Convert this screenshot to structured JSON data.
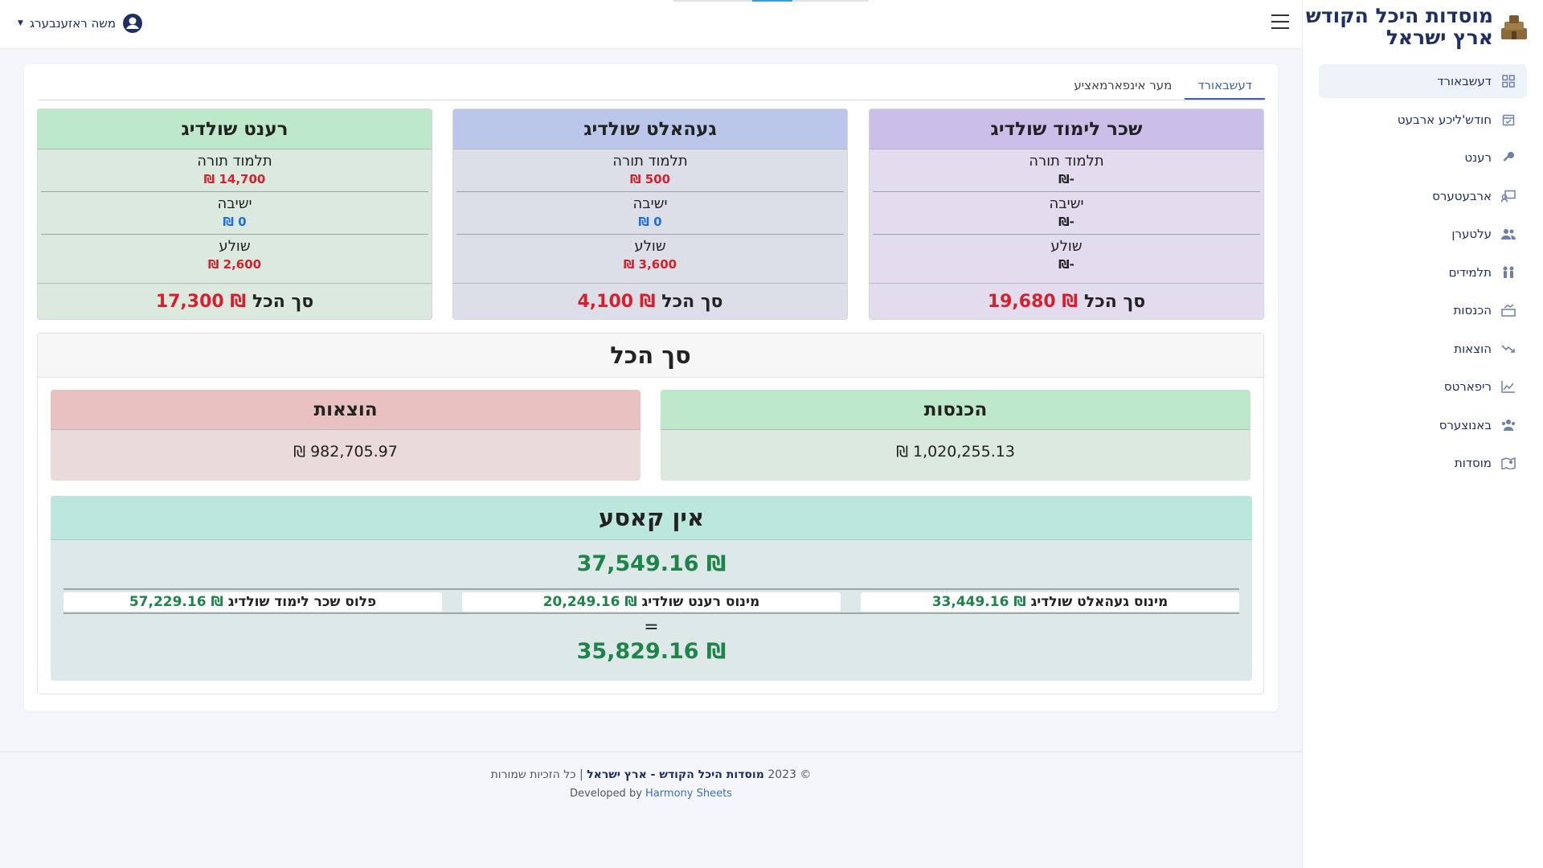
{
  "brand": {
    "line1": "מוסדות היכל הקודש",
    "line2": "ארץ ישראל"
  },
  "user": {
    "name": "משה ראזענבערג"
  },
  "sidebar": {
    "items": [
      {
        "label": "דעשבאורד",
        "icon": "dashboard-icon"
      },
      {
        "label": "חודש'ליכע ארבעט",
        "icon": "calendar-check-icon"
      },
      {
        "label": "רענט",
        "icon": "key-icon"
      },
      {
        "label": "ארבעטערס",
        "icon": "workers-icon"
      },
      {
        "label": "עלטערן",
        "icon": "users-icon"
      },
      {
        "label": "תלמידים",
        "icon": "children-icon"
      },
      {
        "label": "הכנסות",
        "icon": "income-icon"
      },
      {
        "label": "הוצאות",
        "icon": "trend-down-icon"
      },
      {
        "label": "ריפארטס",
        "icon": "chart-line-icon"
      },
      {
        "label": "באנוצערס",
        "icon": "user-group-icon"
      },
      {
        "label": "מוסדות",
        "icon": "map-icon"
      }
    ]
  },
  "tabs": [
    {
      "label": "דעשבאורד"
    },
    {
      "label": "מער אינפארמאציע"
    }
  ],
  "cards": [
    {
      "title": "שכר לימוד שולדיג",
      "head_color": "#cbbfea",
      "body_color": "#e2dcee",
      "rows": [
        {
          "label": "תלמוד תורה",
          "value": "₪-"
        },
        {
          "label": "ישיבה",
          "value": "₪-"
        },
        {
          "label": "שולע",
          "value": "₪-"
        }
      ],
      "total_label": "סך הכל",
      "total_value": "₪ 19,680"
    },
    {
      "title": "געהאלט שולדיג",
      "head_color": "#bac6ea",
      "body_color": "#dcdfe8",
      "rows": [
        {
          "label": "תלמוד תורה",
          "value": "₪ 500"
        },
        {
          "label": "ישיבה",
          "value": "₪ 0"
        },
        {
          "label": "שולע",
          "value": "₪ 3,600"
        }
      ],
      "total_label": "סך הכל",
      "total_value": "₪ 4,100"
    },
    {
      "title": "רענט שולדיג",
      "head_color": "#bde8c9",
      "body_color": "#dce9df",
      "rows": [
        {
          "label": "תלמוד תורה",
          "value": "₪ 14,700"
        },
        {
          "label": "ישיבה",
          "value": "₪ 0"
        },
        {
          "label": "שולע",
          "value": "₪ 2,600"
        }
      ],
      "total_label": "סך הכל",
      "total_value": "₪ 17,300"
    }
  ],
  "totals": {
    "title": "סך הכל",
    "income": {
      "label": "הכנסות",
      "value": "₪ 1,020,255.13"
    },
    "expenses": {
      "label": "הוצאות",
      "value": "₪ 982,705.97"
    }
  },
  "cash": {
    "title": "אין קאסע",
    "amount": "₪ 37,549.16",
    "minus_salary_label": "מינוס געהאלט שולדיג",
    "minus_salary_value": "₪ 33,449.16",
    "minus_rent_label": "מינוס רענט שולדיג",
    "minus_rent_value": "₪ 20,249.16",
    "plus_tuition_label": "פלוס שכר לימוד שולדיג",
    "plus_tuition_value": "₪ 57,229.16",
    "equals": "=",
    "result": "₪ 35,829.16"
  },
  "footer": {
    "copyright": "© 2023",
    "org": "מוסדות היכל הקודש - ארץ ישראל",
    "rights": "| כל הזכיות שמורות",
    "developed_by": "Developed by",
    "developer": "Harmony Sheets"
  },
  "colors": {
    "red": "#d3222e",
    "blue": "#1f6fe0",
    "green": "#1e8449",
    "navy": "#1d2f63"
  }
}
